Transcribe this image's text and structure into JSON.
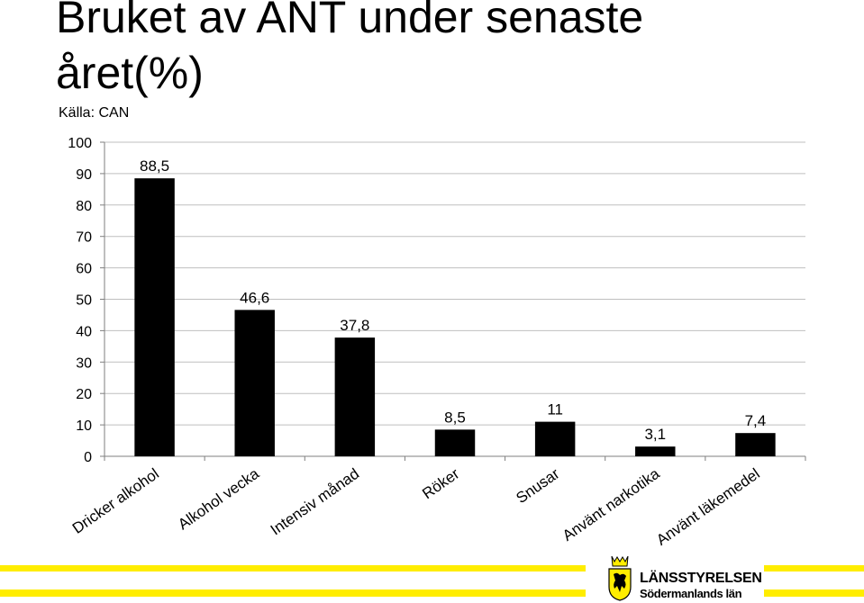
{
  "title": "Bruket av ANT under senaste året(%)",
  "source": "Källa: CAN",
  "chart_data": {
    "type": "bar",
    "title": "Bruket av ANT under senaste året(%)",
    "xlabel": "",
    "ylabel": "",
    "ylim": [
      0,
      100
    ],
    "yticks": [
      0,
      10,
      20,
      30,
      40,
      50,
      60,
      70,
      80,
      90,
      100
    ],
    "grid": true,
    "categories": [
      "Dricker alkohol",
      "Alkohol vecka",
      "Intensiv månad",
      "Röker",
      "Snusar",
      "Använt narkotika",
      "Använt läkemedel"
    ],
    "values": [
      88.5,
      46.6,
      37.8,
      8.5,
      11,
      3.1,
      7.4
    ],
    "value_labels": [
      "88,5",
      "46,6",
      "37,8",
      "8,5",
      "11",
      "3,1",
      "7,4"
    ],
    "bar_color": "#000000"
  },
  "footer": {
    "org_name": "LÄNSSTYRELSEN",
    "org_sub": "Södermanlands län",
    "accent_color": "#ffed00"
  }
}
